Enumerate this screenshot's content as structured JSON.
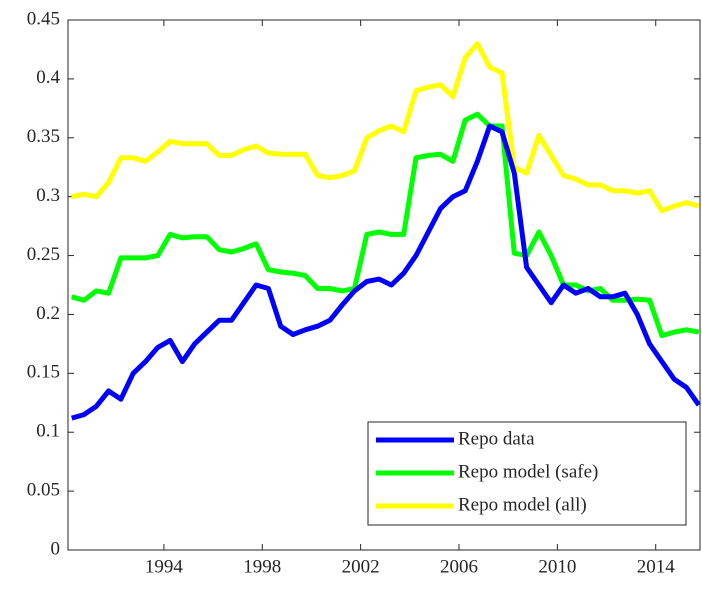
{
  "chart_data": {
    "type": "line",
    "x": [
      1990.25,
      1990.75,
      1991.25,
      1991.75,
      1992.25,
      1992.75,
      1993.25,
      1993.75,
      1994.25,
      1994.75,
      1995.25,
      1995.75,
      1996.25,
      1996.75,
      1997.25,
      1997.75,
      1998.25,
      1998.75,
      1999.25,
      1999.75,
      2000.25,
      2000.75,
      2001.25,
      2001.75,
      2002.25,
      2002.75,
      2003.25,
      2003.75,
      2004.25,
      2004.75,
      2005.25,
      2005.75,
      2006.25,
      2006.75,
      2007.25,
      2007.75,
      2008.25,
      2008.75,
      2009.25,
      2009.75,
      2010.25,
      2010.75,
      2011.25,
      2011.75,
      2012.25,
      2012.75,
      2013.25,
      2013.75,
      2014.25,
      2014.75,
      2015.25,
      2015.75
    ],
    "series": [
      {
        "name": "Repo data",
        "color": "#0000ff",
        "values": [
          0.112,
          0.115,
          0.122,
          0.135,
          0.128,
          0.15,
          0.16,
          0.172,
          0.178,
          0.16,
          0.175,
          0.185,
          0.195,
          0.195,
          0.21,
          0.225,
          0.222,
          0.19,
          0.183,
          0.187,
          0.19,
          0.195,
          0.208,
          0.22,
          0.228,
          0.23,
          0.225,
          0.235,
          0.25,
          0.27,
          0.29,
          0.3,
          0.305,
          0.33,
          0.36,
          0.355,
          0.32,
          0.24,
          0.225,
          0.21,
          0.225,
          0.218,
          0.222,
          0.215,
          0.215,
          0.218,
          0.2,
          0.175,
          0.16,
          0.145,
          0.138,
          0.123
        ]
      },
      {
        "name": "Repo model (safe)",
        "color": "#00ff00",
        "values": [
          0.215,
          0.212,
          0.22,
          0.218,
          0.248,
          0.248,
          0.248,
          0.25,
          0.268,
          0.265,
          0.266,
          0.266,
          0.255,
          0.253,
          0.256,
          0.26,
          0.238,
          0.236,
          0.235,
          0.233,
          0.222,
          0.222,
          0.22,
          0.222,
          0.268,
          0.27,
          0.268,
          0.268,
          0.333,
          0.335,
          0.336,
          0.33,
          0.365,
          0.37,
          0.36,
          0.36,
          0.252,
          0.25,
          0.27,
          0.25,
          0.225,
          0.225,
          0.22,
          0.222,
          0.212,
          0.212,
          0.213,
          0.212,
          0.182,
          0.185,
          0.187,
          0.185
        ]
      },
      {
        "name": "Repo model (all)",
        "color": "#ffff00",
        "values": [
          0.3,
          0.302,
          0.3,
          0.312,
          0.333,
          0.333,
          0.33,
          0.338,
          0.347,
          0.345,
          0.345,
          0.345,
          0.335,
          0.335,
          0.34,
          0.343,
          0.337,
          0.336,
          0.336,
          0.336,
          0.318,
          0.316,
          0.318,
          0.322,
          0.35,
          0.356,
          0.36,
          0.355,
          0.39,
          0.393,
          0.395,
          0.385,
          0.418,
          0.43,
          0.41,
          0.405,
          0.325,
          0.32,
          0.352,
          0.335,
          0.318,
          0.315,
          0.31,
          0.31,
          0.305,
          0.305,
          0.303,
          0.305,
          0.288,
          0.292,
          0.295,
          0.292
        ]
      }
    ],
    "xlim": [
      1990.1,
      2015.8
    ],
    "xticks": [
      1994,
      1998,
      2002,
      2006,
      2010,
      2014
    ],
    "ylim": [
      0,
      0.45
    ],
    "yticks": [
      0,
      0.05,
      0.1,
      0.15,
      0.2,
      0.25,
      0.3,
      0.35,
      0.4,
      0.45
    ],
    "legend": "lower-right"
  }
}
